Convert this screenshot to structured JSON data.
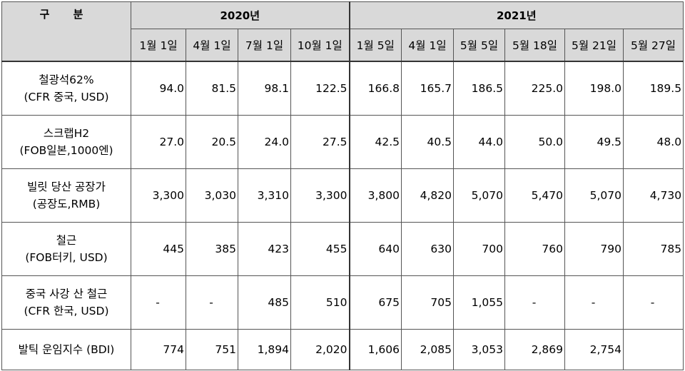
{
  "header": {
    "label": "구 분",
    "years": [
      {
        "label": "2020년",
        "span": 4
      },
      {
        "label": "2021년",
        "span": 6
      }
    ],
    "dates": [
      "1월 1일",
      "4월 1일",
      "7월 1일",
      "10월 1일",
      "1월 5일",
      "4월 1일",
      "5월 5일",
      "5월 18일",
      "5월 21일",
      "5월 27일"
    ]
  },
  "rows": [
    {
      "line1": "철광석62%",
      "line2": "(CFR 중국, USD)",
      "values": [
        "94.0",
        "81.5",
        "98.1",
        "122.5",
        "166.8",
        "165.7",
        "186.5",
        "225.0",
        "198.0",
        "189.5"
      ]
    },
    {
      "line1": "스크랩H2",
      "line2": "(FOB일본,1000엔)",
      "values": [
        "27.0",
        "20.5",
        "24.0",
        "27.5",
        "42.5",
        "40.5",
        "44.0",
        "50.0",
        "49.5",
        "48.0"
      ]
    },
    {
      "line1": "빌릿 당산 공장가",
      "line2": "(공장도,RMB)",
      "values": [
        "3,300",
        "3,030",
        "3,310",
        "3,300",
        "3,800",
        "4,820",
        "5,070",
        "5,470",
        "5,070",
        "4,730"
      ]
    },
    {
      "line1": "철근",
      "line2": "(FOB터키, USD)",
      "values": [
        "445",
        "385",
        "423",
        "455",
        "640",
        "630",
        "700",
        "760",
        "790",
        "785"
      ]
    },
    {
      "line1": "중국 사강 산 철근",
      "line2": "(CFR 한국, USD)",
      "values": [
        "-",
        "-",
        "485",
        "510",
        "675",
        "705",
        "1,055",
        "-",
        "-",
        "-"
      ]
    },
    {
      "line1": "발틱 운임지수 (BDI)",
      "line2": "",
      "values": [
        "774",
        "751",
        "1,894",
        "2,020",
        "1,606",
        "2,085",
        "3,053",
        "2,869",
        "2,754",
        ""
      ]
    }
  ]
}
